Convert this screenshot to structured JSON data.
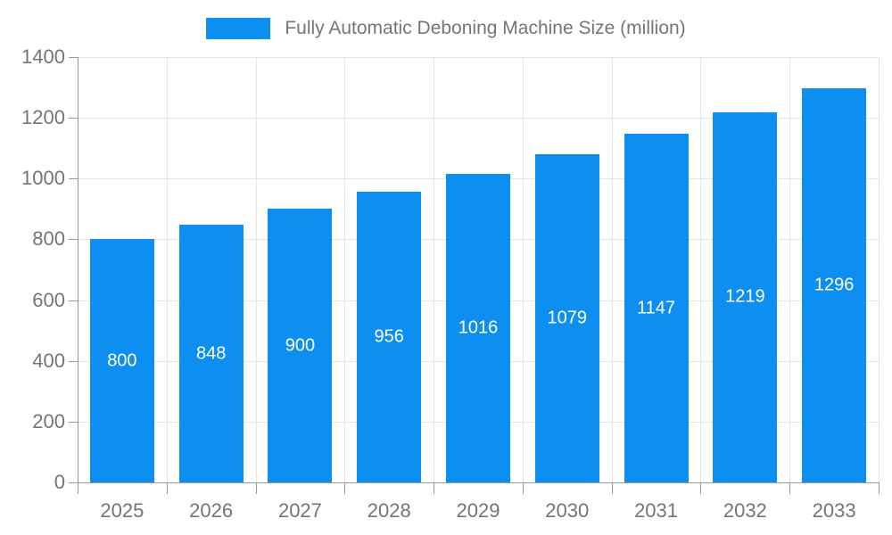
{
  "legend": {
    "label": "Fully Automatic Deboning Machine Size (million)"
  },
  "chart_data": {
    "type": "bar",
    "title": "Fully Automatic Deboning Machine Size (million)",
    "categories": [
      "2025",
      "2026",
      "2027",
      "2028",
      "2029",
      "2030",
      "2031",
      "2032",
      "2033"
    ],
    "values": [
      800,
      848,
      900,
      956,
      1016,
      1079,
      1147,
      1219,
      1296
    ],
    "xlabel": "",
    "ylabel": "",
    "ylim": [
      0,
      1400
    ],
    "yticks": [
      0,
      200,
      400,
      600,
      800,
      1000,
      1200,
      1400
    ],
    "grid": true,
    "legend_position": "top",
    "value_labels_position": "inside-center"
  },
  "colors": {
    "bar": "#0d8ff2",
    "axis": "#999999",
    "grid": "#e6e6e6",
    "tick_label": "#757575",
    "legend_text": "#757575",
    "value_label": "#ffffff",
    "background": "#ffffff"
  }
}
